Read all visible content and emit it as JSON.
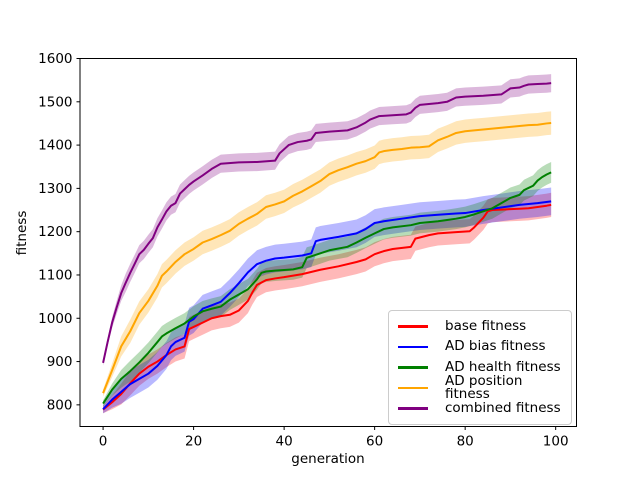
{
  "figure": {
    "background": "#ffffff"
  },
  "chart_data": {
    "type": "line",
    "title": "",
    "xlabel": "generation",
    "ylabel": "fitness",
    "xlim": [
      -5.1,
      104.6
    ],
    "ylim": [
      750,
      1600
    ],
    "x_ticks": [
      0,
      20,
      40,
      60,
      80,
      100
    ],
    "y_ticks": [
      800,
      900,
      1000,
      1100,
      1200,
      1300,
      1400,
      1500,
      1600
    ],
    "grid": false,
    "legend_position": "lower right",
    "band_alpha": 0.28,
    "series": [
      {
        "name": "base fitness",
        "color": "#ff0000",
        "band_halfwidth": 28,
        "points": [
          [
            0,
            789
          ],
          [
            2,
            806
          ],
          [
            4,
            825
          ],
          [
            6,
            850
          ],
          [
            8,
            872
          ],
          [
            10,
            888
          ],
          [
            12,
            900
          ],
          [
            14,
            915
          ],
          [
            16,
            928
          ],
          [
            18,
            935
          ],
          [
            19,
            975
          ],
          [
            20,
            980
          ],
          [
            22,
            990
          ],
          [
            24,
            1000
          ],
          [
            26,
            1005
          ],
          [
            28,
            1008
          ],
          [
            30,
            1018
          ],
          [
            32,
            1040
          ],
          [
            33,
            1060
          ],
          [
            34,
            1077
          ],
          [
            36,
            1088
          ],
          [
            38,
            1092
          ],
          [
            40,
            1095
          ],
          [
            44,
            1102
          ],
          [
            48,
            1112
          ],
          [
            52,
            1120
          ],
          [
            56,
            1130
          ],
          [
            58,
            1136
          ],
          [
            60,
            1148
          ],
          [
            62,
            1155
          ],
          [
            64,
            1160
          ],
          [
            68,
            1165
          ],
          [
            69,
            1184
          ],
          [
            72,
            1192
          ],
          [
            74,
            1196
          ],
          [
            78,
            1199
          ],
          [
            81,
            1201
          ],
          [
            82,
            1210
          ],
          [
            84,
            1232
          ],
          [
            85,
            1247
          ],
          [
            86,
            1250
          ],
          [
            88,
            1251
          ],
          [
            92,
            1253
          ],
          [
            94,
            1254
          ],
          [
            96,
            1257
          ],
          [
            98,
            1260
          ],
          [
            99,
            1262
          ]
        ]
      },
      {
        "name": "AD bias fitness",
        "color": "#0000ff",
        "band_halfwidth": 32,
        "points": [
          [
            0,
            790
          ],
          [
            2,
            812
          ],
          [
            4,
            830
          ],
          [
            6,
            848
          ],
          [
            8,
            860
          ],
          [
            10,
            872
          ],
          [
            12,
            890
          ],
          [
            14,
            915
          ],
          [
            15,
            935
          ],
          [
            16,
            945
          ],
          [
            18,
            955
          ],
          [
            19,
            992
          ],
          [
            20,
            998
          ],
          [
            22,
            1022
          ],
          [
            24,
            1030
          ],
          [
            26,
            1038
          ],
          [
            28,
            1058
          ],
          [
            30,
            1081
          ],
          [
            32,
            1106
          ],
          [
            34,
            1125
          ],
          [
            36,
            1133
          ],
          [
            38,
            1138
          ],
          [
            40,
            1140
          ],
          [
            44,
            1145
          ],
          [
            46,
            1150
          ],
          [
            47,
            1178
          ],
          [
            48,
            1181
          ],
          [
            52,
            1188
          ],
          [
            56,
            1196
          ],
          [
            58,
            1206
          ],
          [
            60,
            1220
          ],
          [
            62,
            1224
          ],
          [
            66,
            1230
          ],
          [
            70,
            1236
          ],
          [
            74,
            1239
          ],
          [
            78,
            1242
          ],
          [
            80,
            1243
          ],
          [
            84,
            1250
          ],
          [
            88,
            1256
          ],
          [
            92,
            1262
          ],
          [
            96,
            1266
          ],
          [
            99,
            1270
          ]
        ]
      },
      {
        "name": "AD health fitness",
        "color": "#008000",
        "band_halfwidth": 24,
        "points": [
          [
            0,
            803
          ],
          [
            2,
            835
          ],
          [
            4,
            860
          ],
          [
            6,
            878
          ],
          [
            8,
            898
          ],
          [
            10,
            920
          ],
          [
            12,
            945
          ],
          [
            13,
            958
          ],
          [
            14,
            965
          ],
          [
            16,
            977
          ],
          [
            18,
            988
          ],
          [
            20,
            1004
          ],
          [
            22,
            1016
          ],
          [
            24,
            1022
          ],
          [
            26,
            1027
          ],
          [
            28,
            1043
          ],
          [
            30,
            1055
          ],
          [
            32,
            1067
          ],
          [
            34,
            1090
          ],
          [
            35,
            1105
          ],
          [
            36,
            1108
          ],
          [
            38,
            1110
          ],
          [
            42,
            1113
          ],
          [
            44,
            1118
          ],
          [
            45,
            1140
          ],
          [
            46,
            1143
          ],
          [
            48,
            1150
          ],
          [
            50,
            1157
          ],
          [
            54,
            1165
          ],
          [
            56,
            1175
          ],
          [
            58,
            1186
          ],
          [
            60,
            1196
          ],
          [
            62,
            1206
          ],
          [
            64,
            1210
          ],
          [
            68,
            1215
          ],
          [
            70,
            1220
          ],
          [
            74,
            1224
          ],
          [
            76,
            1227
          ],
          [
            78,
            1230
          ],
          [
            80,
            1234
          ],
          [
            82,
            1240
          ],
          [
            84,
            1247
          ],
          [
            86,
            1254
          ],
          [
            88,
            1266
          ],
          [
            90,
            1278
          ],
          [
            92,
            1285
          ],
          [
            93,
            1296
          ],
          [
            94,
            1301
          ],
          [
            95,
            1306
          ],
          [
            96,
            1318
          ],
          [
            97,
            1326
          ],
          [
            98,
            1332
          ],
          [
            99,
            1337
          ]
        ]
      },
      {
        "name": "AD position fitness",
        "color": "#ffa500",
        "band_halfwidth": 27,
        "points": [
          [
            0,
            827
          ],
          [
            2,
            880
          ],
          [
            4,
            935
          ],
          [
            6,
            970
          ],
          [
            8,
            1012
          ],
          [
            10,
            1040
          ],
          [
            12,
            1075
          ],
          [
            13,
            1098
          ],
          [
            14,
            1108
          ],
          [
            16,
            1130
          ],
          [
            18,
            1148
          ],
          [
            20,
            1160
          ],
          [
            22,
            1175
          ],
          [
            24,
            1183
          ],
          [
            26,
            1192
          ],
          [
            28,
            1202
          ],
          [
            30,
            1218
          ],
          [
            32,
            1230
          ],
          [
            34,
            1241
          ],
          [
            36,
            1257
          ],
          [
            38,
            1263
          ],
          [
            40,
            1270
          ],
          [
            42,
            1283
          ],
          [
            44,
            1293
          ],
          [
            46,
            1305
          ],
          [
            48,
            1317
          ],
          [
            50,
            1333
          ],
          [
            52,
            1342
          ],
          [
            54,
            1349
          ],
          [
            56,
            1357
          ],
          [
            58,
            1363
          ],
          [
            60,
            1372
          ],
          [
            61,
            1383
          ],
          [
            62,
            1386
          ],
          [
            64,
            1389
          ],
          [
            66,
            1391
          ],
          [
            68,
            1394
          ],
          [
            70,
            1395
          ],
          [
            72,
            1397
          ],
          [
            74,
            1411
          ],
          [
            76,
            1419
          ],
          [
            78,
            1428
          ],
          [
            80,
            1432
          ],
          [
            82,
            1434
          ],
          [
            84,
            1436
          ],
          [
            86,
            1438
          ],
          [
            88,
            1440
          ],
          [
            90,
            1442
          ],
          [
            92,
            1444
          ],
          [
            94,
            1446
          ],
          [
            96,
            1447
          ],
          [
            98,
            1450
          ],
          [
            99,
            1451
          ]
        ]
      },
      {
        "name": "combined fitness",
        "color": "#800080",
        "band_halfwidth": 21,
        "points": [
          [
            0,
            897
          ],
          [
            1,
            945
          ],
          [
            2,
            990
          ],
          [
            3,
            1025
          ],
          [
            4,
            1058
          ],
          [
            5,
            1082
          ],
          [
            6,
            1105
          ],
          [
            7,
            1126
          ],
          [
            8,
            1148
          ],
          [
            9,
            1158
          ],
          [
            10,
            1172
          ],
          [
            11,
            1185
          ],
          [
            12,
            1210
          ],
          [
            13,
            1228
          ],
          [
            14,
            1247
          ],
          [
            15,
            1260
          ],
          [
            16,
            1266
          ],
          [
            17,
            1288
          ],
          [
            18,
            1298
          ],
          [
            19,
            1308
          ],
          [
            20,
            1316
          ],
          [
            22,
            1330
          ],
          [
            24,
            1345
          ],
          [
            26,
            1357
          ],
          [
            30,
            1360
          ],
          [
            34,
            1361
          ],
          [
            38,
            1364
          ],
          [
            39,
            1381
          ],
          [
            41,
            1400
          ],
          [
            43,
            1407
          ],
          [
            45,
            1410
          ],
          [
            46,
            1413
          ],
          [
            47,
            1428
          ],
          [
            50,
            1431
          ],
          [
            54,
            1434
          ],
          [
            56,
            1441
          ],
          [
            58,
            1452
          ],
          [
            59,
            1459
          ],
          [
            61,
            1467
          ],
          [
            64,
            1469
          ],
          [
            67,
            1471
          ],
          [
            68,
            1475
          ],
          [
            69,
            1486
          ],
          [
            70,
            1493
          ],
          [
            74,
            1497
          ],
          [
            76,
            1500
          ],
          [
            78,
            1510
          ],
          [
            80,
            1512
          ],
          [
            84,
            1514
          ],
          [
            88,
            1517
          ],
          [
            89,
            1524
          ],
          [
            90,
            1531
          ],
          [
            92,
            1533
          ],
          [
            93,
            1537
          ],
          [
            94,
            1540
          ],
          [
            96,
            1541
          ],
          [
            98,
            1542
          ],
          [
            99,
            1543
          ]
        ]
      }
    ]
  }
}
